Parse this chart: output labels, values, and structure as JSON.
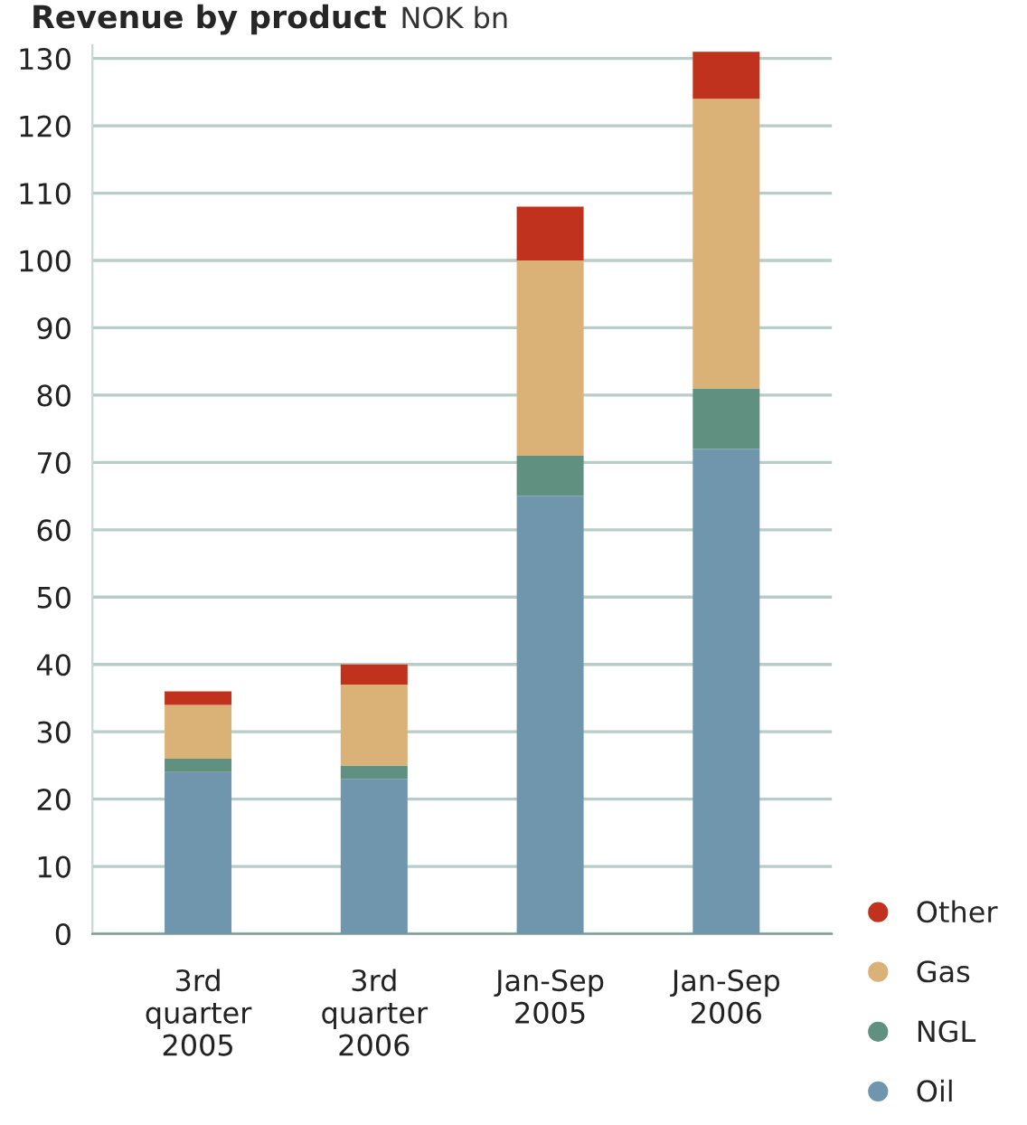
{
  "chart_data": {
    "type": "bar",
    "title": "Revenue by product",
    "subtitle": "NOK bn",
    "categories": [
      "3rd\nquarter\n2005",
      "3rd\nquarter\n2006",
      "Jan-Sep\n2005",
      "Jan-Sep\n2006"
    ],
    "stacked": true,
    "series": [
      {
        "name": "Oil",
        "color": "#7096ae",
        "values": [
          24,
          23,
          65,
          72
        ]
      },
      {
        "name": "NGL",
        "color": "#5f9080",
        "values": [
          2,
          2,
          6,
          9
        ]
      },
      {
        "name": "Gas",
        "color": "#dab277",
        "values": [
          8,
          12,
          29,
          43
        ]
      },
      {
        "name": "Other",
        "color": "#c0321e",
        "values": [
          2,
          3,
          8,
          7
        ]
      }
    ],
    "ylim": [
      0,
      132
    ],
    "yticks": [
      0,
      10,
      20,
      30,
      40,
      50,
      60,
      70,
      80,
      90,
      100,
      110,
      120,
      130
    ],
    "grid": "y",
    "legend": "bottom right"
  }
}
